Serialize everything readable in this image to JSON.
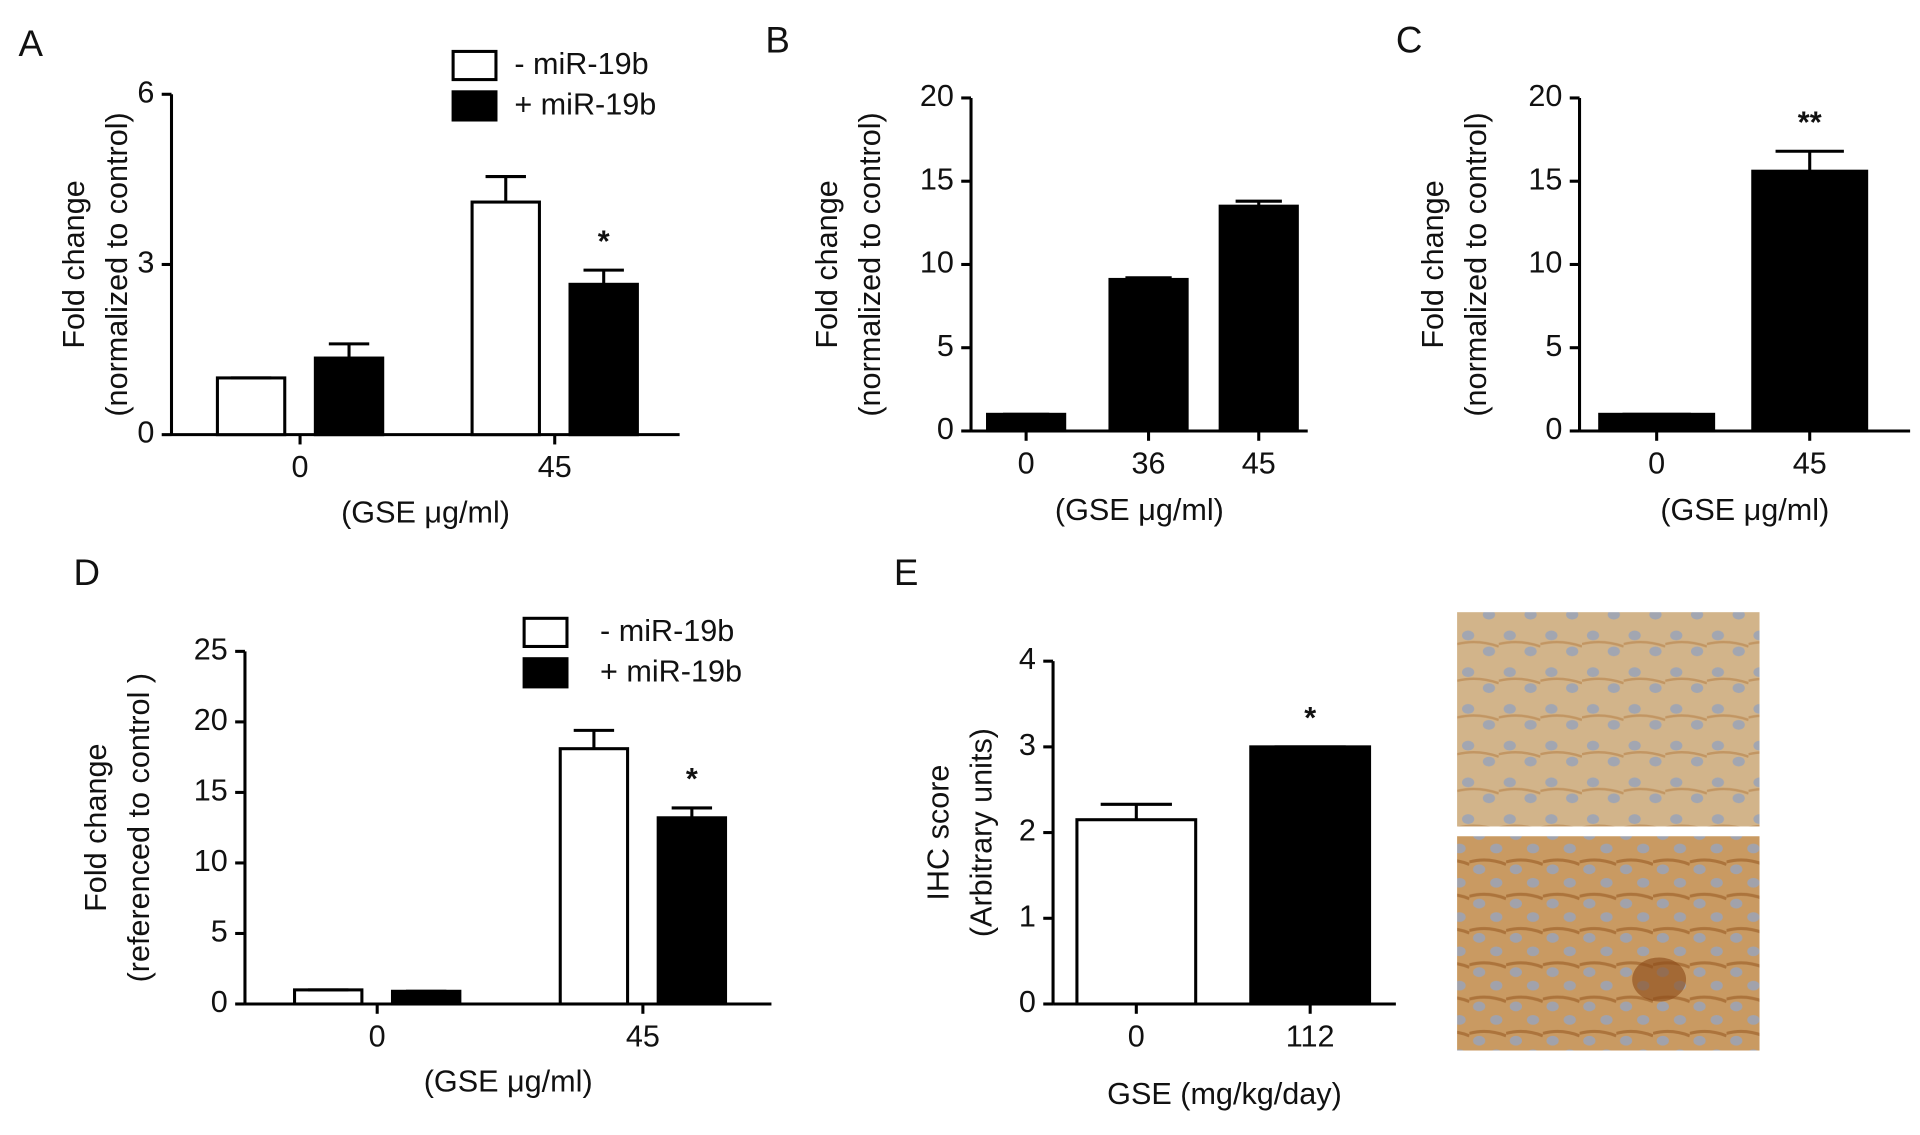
{
  "chart_data": [
    {
      "type": "bar",
      "panel": "A",
      "categories": [
        "0",
        "45"
      ],
      "series": [
        {
          "name": "- miR-19b",
          "color": "#ffffff",
          "values": [
            1.0,
            4.1
          ],
          "errors": [
            0,
            0.45
          ]
        },
        {
          "name": "+ miR-19b",
          "color": "#000000",
          "values": [
            1.35,
            2.65
          ],
          "errors": [
            0.25,
            0.25
          ]
        }
      ],
      "ylabel": [
        "Fold change",
        "(normalized to control)"
      ],
      "xlabel": "(GSE μg/ml)",
      "ylim": [
        0,
        6
      ],
      "yticks": [
        0,
        3,
        6
      ],
      "annotations": [
        {
          "text": "*",
          "category": "45",
          "series": "+ miR-19b"
        }
      ]
    },
    {
      "type": "bar",
      "panel": "B",
      "categories": [
        "0",
        "36",
        "45"
      ],
      "series": [
        {
          "color": "#000000",
          "values": [
            1.0,
            9.1,
            13.5
          ],
          "errors": [
            0,
            0.1,
            0.3
          ]
        }
      ],
      "ylabel": [
        "Fold change",
        "(normalized to control)"
      ],
      "xlabel": "(GSE μg/ml)",
      "ylim": [
        0,
        20
      ],
      "yticks": [
        0,
        5,
        10,
        15,
        20
      ]
    },
    {
      "type": "bar",
      "panel": "C",
      "categories": [
        "0",
        "45"
      ],
      "series": [
        {
          "color": "#000000",
          "values": [
            1.0,
            15.6
          ],
          "errors": [
            0,
            1.2
          ]
        }
      ],
      "ylabel": [
        "Fold change",
        "(normalized to control)"
      ],
      "xlabel": "(GSE μg/ml)",
      "ylim": [
        0,
        20
      ],
      "yticks": [
        0,
        5,
        10,
        15,
        20
      ],
      "annotations": [
        {
          "text": "**",
          "category": "45"
        }
      ]
    },
    {
      "type": "bar",
      "panel": "D",
      "categories": [
        "0",
        "45"
      ],
      "series": [
        {
          "name": "- miR-19b",
          "color": "#ffffff",
          "values": [
            1.0,
            18.1
          ],
          "errors": [
            0,
            1.3
          ]
        },
        {
          "name": "+ miR-19b",
          "color": "#000000",
          "values": [
            0.9,
            13.2
          ],
          "errors": [
            0,
            0.7
          ]
        }
      ],
      "ylabel": [
        "Fold change",
        "(referenced to control )"
      ],
      "xlabel": "(GSE μg/ml)",
      "ylim": [
        0,
        25
      ],
      "yticks": [
        0,
        5,
        10,
        15,
        20,
        25
      ],
      "annotations": [
        {
          "text": "*",
          "category": "45",
          "series": "+ miR-19b"
        }
      ]
    },
    {
      "type": "bar",
      "panel": "E",
      "categories": [
        "0",
        "112"
      ],
      "series": [
        {
          "colors": [
            "#ffffff",
            "#000000"
          ],
          "values": [
            2.15,
            3.0
          ],
          "errors": [
            0.18,
            0
          ]
        }
      ],
      "ylabel": [
        "IHC score",
        "(Arbitrary units)"
      ],
      "xlabel": "GSE (mg/kg/day)",
      "ylim": [
        0,
        4
      ],
      "yticks": [
        0,
        1,
        2,
        3,
        4
      ],
      "annotations": [
        {
          "text": "*",
          "category": "112"
        }
      ]
    }
  ]
}
